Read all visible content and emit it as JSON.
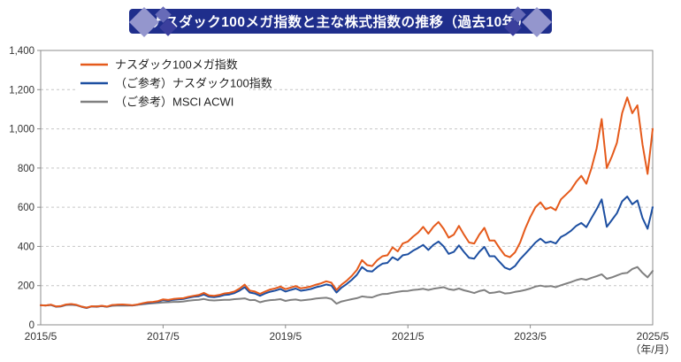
{
  "header": {
    "title": "ナスダック100メガ指数と主な株式指数の推移（過去10年）"
  },
  "colors": {
    "banner": "#1f2e8c",
    "diamond_light": "#9496cd",
    "diamond_mid": "#676bb8",
    "diamond_dark": "#3b3f9d",
    "series_orange": "#e55a1b",
    "series_blue": "#1d4fa1",
    "series_gray": "#808080",
    "grid": "#c6c6c6",
    "axis": "#8c8c8c",
    "text": "#333333"
  },
  "chart_data": {
    "type": "line",
    "title": "ナスダック100メガ指数と主な株式指数の推移（過去10年）",
    "xlabel": "",
    "ylabel": "",
    "x_axis_unit": "（年/月）",
    "x_start": "2015/5",
    "x_end": "2025/5",
    "points_per_series": 121,
    "x_frequency": "monthly",
    "x_ticks": [
      {
        "label": "2015/5",
        "index": 0
      },
      {
        "label": "2017/5",
        "index": 24
      },
      {
        "label": "2019/5",
        "index": 48
      },
      {
        "label": "2021/5",
        "index": 72
      },
      {
        "label": "2023/5",
        "index": 96
      },
      {
        "label": "2025/5",
        "index": 120
      }
    ],
    "y_ticks": [
      "0",
      "200",
      "400",
      "600",
      "800",
      "1,000",
      "1,200",
      "1,400"
    ],
    "ylim": [
      0,
      1400
    ],
    "grid": "horizontal-dashed",
    "legend_position": "top-left-inside",
    "series": [
      {
        "name": "ナスダック100メガ指数",
        "color": "#e55a1b",
        "values": [
          100,
          99,
          103,
          94,
          96,
          104,
          106,
          102,
          93,
          87,
          95,
          93,
          97,
          93,
          101,
          103,
          104,
          102,
          100,
          104,
          110,
          115,
          117,
          121,
          130,
          127,
          132,
          134,
          136,
          143,
          148,
          152,
          163,
          150,
          148,
          152,
          160,
          163,
          170,
          185,
          205,
          175,
          170,
          158,
          170,
          180,
          186,
          195,
          182,
          190,
          198,
          186,
          190,
          196,
          205,
          212,
          222,
          215,
          178,
          205,
          225,
          250,
          280,
          330,
          305,
          300,
          330,
          350,
          355,
          395,
          375,
          415,
          425,
          450,
          470,
          500,
          465,
          500,
          525,
          490,
          445,
          460,
          505,
          460,
          420,
          415,
          460,
          495,
          430,
          430,
          390,
          355,
          345,
          370,
          420,
          490,
          550,
          600,
          625,
          590,
          600,
          585,
          640,
          665,
          690,
          730,
          760,
          720,
          800,
          900,
          1050,
          800,
          860,
          930,
          1080,
          1160,
          1080,
          1120,
          920,
          770,
          1000
        ]
      },
      {
        "name": "（ご参考）ナスダック100指数",
        "color": "#1d4fa1",
        "values": [
          100,
          99,
          102,
          93,
          95,
          103,
          105,
          101,
          92,
          86,
          94,
          92,
          96,
          92,
          100,
          102,
          103,
          101,
          99,
          103,
          108,
          112,
          114,
          118,
          126,
          123,
          128,
          130,
          132,
          138,
          143,
          146,
          155,
          143,
          141,
          145,
          152,
          155,
          162,
          175,
          192,
          165,
          160,
          148,
          160,
          169,
          175,
          183,
          170,
          178,
          185,
          174,
          178,
          183,
          192,
          198,
          206,
          200,
          165,
          190,
          208,
          230,
          255,
          295,
          275,
          272,
          295,
          312,
          316,
          345,
          330,
          355,
          360,
          378,
          392,
          408,
          382,
          408,
          425,
          400,
          362,
          372,
          405,
          372,
          342,
          338,
          372,
          398,
          350,
          350,
          320,
          292,
          282,
          300,
          335,
          362,
          390,
          420,
          440,
          418,
          425,
          415,
          448,
          462,
          480,
          505,
          520,
          498,
          545,
          590,
          640,
          500,
          535,
          570,
          630,
          655,
          615,
          635,
          545,
          490,
          600
        ]
      },
      {
        "name": "（ご参考）MSCI ACWI",
        "color": "#808080",
        "values": [
          100,
          99,
          101,
          92,
          94,
          101,
          102,
          100,
          93,
          88,
          94,
          95,
          96,
          92,
          97,
          98,
          99,
          98,
          99,
          102,
          105,
          108,
          110,
          112,
          114,
          115,
          117,
          117,
          119,
          123,
          126,
          128,
          132,
          126,
          124,
          126,
          128,
          128,
          131,
          133,
          135,
          126,
          127,
          115,
          122,
          126,
          128,
          131,
          122,
          127,
          129,
          124,
          127,
          130,
          134,
          137,
          138,
          132,
          108,
          119,
          125,
          131,
          136,
          145,
          142,
          140,
          150,
          157,
          158,
          164,
          168,
          172,
          173,
          178,
          180,
          184,
          178,
          184,
          188,
          192,
          182,
          178,
          185,
          176,
          170,
          162,
          172,
          178,
          162,
          165,
          170,
          160,
          162,
          168,
          172,
          178,
          185,
          195,
          200,
          195,
          198,
          192,
          202,
          210,
          218,
          228,
          235,
          230,
          240,
          248,
          258,
          235,
          242,
          252,
          262,
          265,
          285,
          295,
          265,
          242,
          275
        ]
      }
    ]
  }
}
